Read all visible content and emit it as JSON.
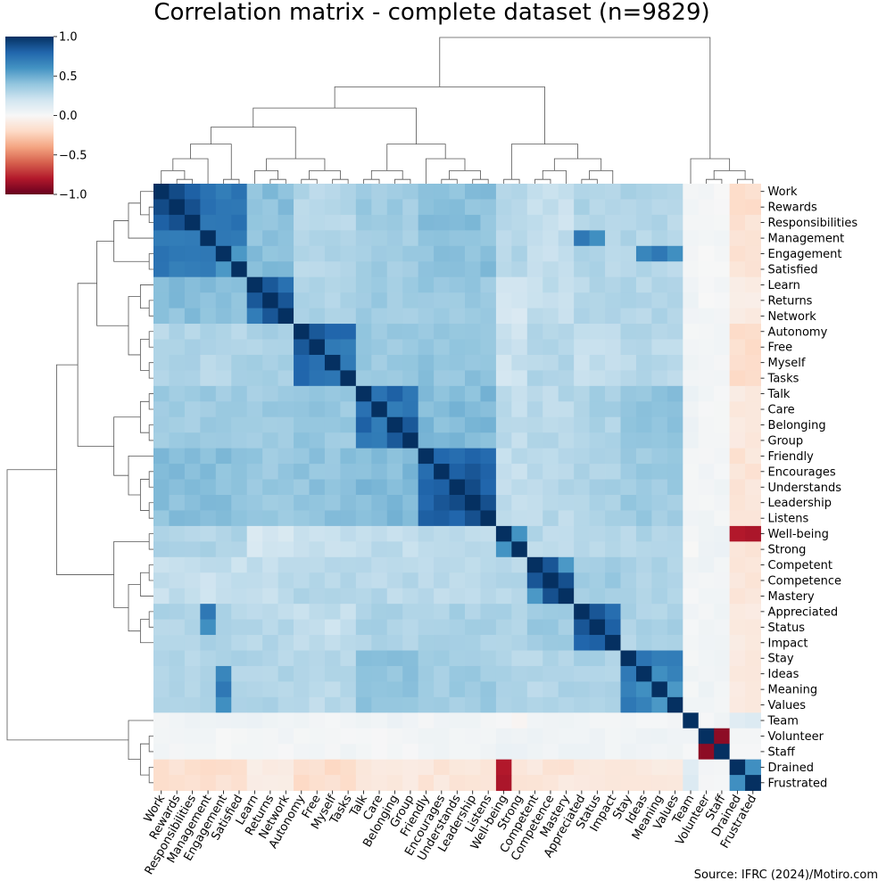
{
  "chart_data": {
    "type": "heatmap",
    "title": "Correlation matrix - complete dataset (n=9829)",
    "source": "Source: IFRC (2024)/Motiro.com",
    "labels": [
      "Work",
      "Rewards",
      "Responsibilities",
      "Management",
      "Engagement",
      "Satisfied",
      "Learn",
      "Returns",
      "Network",
      "Autonomy",
      "Free",
      "Myself",
      "Tasks",
      "Talk",
      "Care",
      "Belonging",
      "Group",
      "Friendly",
      "Encourages",
      "Understands",
      "Leadership",
      "Listens",
      "Well-being",
      "Strong",
      "Competent",
      "Competence",
      "Mastery",
      "Appreciated",
      "Status",
      "Impact",
      "Stay",
      "Ideas",
      "Meaning",
      "Values",
      "Team",
      "Volunteer",
      "Staff",
      "Drained",
      "Frustrated"
    ],
    "colorbar": {
      "min": -1.0,
      "max": 1.0,
      "ticks": [
        "1.0",
        "0.5",
        "0.0",
        "−0.5",
        "−1.0"
      ],
      "tick_values": [
        1.0,
        0.5,
        0.0,
        -0.5,
        -1.0
      ],
      "colormap": "RdBu"
    },
    "clusters": [
      [
        0,
        5
      ],
      [
        6,
        8
      ],
      [
        9,
        12
      ],
      [
        13,
        16
      ],
      [
        17,
        21
      ],
      [
        22,
        23
      ],
      [
        24,
        26
      ],
      [
        27,
        29
      ],
      [
        30,
        33
      ],
      [
        34,
        34
      ],
      [
        35,
        36
      ],
      [
        37,
        38
      ]
    ],
    "cluster_means": [
      [
        0.72,
        0.42,
        0.3,
        0.36,
        0.42,
        0.3,
        0.24,
        0.3,
        0.3,
        0.04,
        0.02,
        -0.16
      ],
      [
        0.42,
        0.72,
        0.32,
        0.36,
        0.38,
        0.18,
        0.25,
        0.28,
        0.3,
        0.05,
        0.02,
        -0.08
      ],
      [
        0.3,
        0.32,
        0.72,
        0.38,
        0.4,
        0.22,
        0.3,
        0.24,
        0.28,
        0.03,
        0.03,
        -0.18
      ],
      [
        0.36,
        0.36,
        0.38,
        0.72,
        0.44,
        0.26,
        0.28,
        0.32,
        0.4,
        0.05,
        0.02,
        -0.1
      ],
      [
        0.42,
        0.38,
        0.4,
        0.44,
        0.8,
        0.25,
        0.28,
        0.32,
        0.36,
        0.03,
        0.03,
        -0.13
      ],
      [
        0.3,
        0.18,
        0.22,
        0.26,
        0.25,
        0.6,
        0.28,
        0.3,
        0.3,
        0.0,
        0.06,
        -0.55
      ],
      [
        0.24,
        0.25,
        0.3,
        0.28,
        0.28,
        0.28,
        0.8,
        0.36,
        0.3,
        0.03,
        0.04,
        -0.12
      ],
      [
        0.3,
        0.28,
        0.24,
        0.32,
        0.32,
        0.3,
        0.36,
        0.8,
        0.32,
        0.03,
        0.04,
        -0.1
      ],
      [
        0.3,
        0.3,
        0.28,
        0.4,
        0.36,
        0.3,
        0.3,
        0.32,
        0.7,
        0.03,
        0.04,
        -0.1
      ],
      [
        0.04,
        0.05,
        0.03,
        0.05,
        0.03,
        0.0,
        0.03,
        0.03,
        0.03,
        1.0,
        0.03,
        0.12
      ],
      [
        0.02,
        0.02,
        0.03,
        0.02,
        0.03,
        0.06,
        0.04,
        0.04,
        0.04,
        0.03,
        0.0,
        0.02
      ],
      [
        -0.16,
        -0.08,
        -0.18,
        -0.1,
        -0.13,
        -0.55,
        -0.12,
        -0.1,
        -0.1,
        0.12,
        0.02,
        0.7
      ]
    ],
    "cell_overrides": [
      {
        "r": 0,
        "c": 1,
        "v": 0.9
      },
      {
        "r": 0,
        "c": 2,
        "v": 0.82
      },
      {
        "r": 1,
        "c": 2,
        "v": 0.88
      },
      {
        "r": 3,
        "c": 4,
        "v": 0.72
      },
      {
        "r": 4,
        "c": 5,
        "v": 0.58
      },
      {
        "r": 6,
        "c": 7,
        "v": 0.85
      },
      {
        "r": 7,
        "c": 8,
        "v": 0.86
      },
      {
        "r": 9,
        "c": 10,
        "v": 0.85
      },
      {
        "r": 9,
        "c": 11,
        "v": 0.8
      },
      {
        "r": 9,
        "c": 12,
        "v": 0.8
      },
      {
        "r": 13,
        "c": 15,
        "v": 0.82
      },
      {
        "r": 14,
        "c": 15,
        "v": 0.7
      },
      {
        "r": 15,
        "c": 16,
        "v": 0.85
      },
      {
        "r": 18,
        "c": 19,
        "v": 0.82
      },
      {
        "r": 18,
        "c": 20,
        "v": 0.86
      },
      {
        "r": 19,
        "c": 20,
        "v": 0.9
      },
      {
        "r": 19,
        "c": 21,
        "v": 0.8
      },
      {
        "r": 20,
        "c": 21,
        "v": 0.88
      },
      {
        "r": 22,
        "c": 23,
        "v": 0.6
      },
      {
        "r": 24,
        "c": 25,
        "v": 0.86
      },
      {
        "r": 25,
        "c": 26,
        "v": 0.88
      },
      {
        "r": 24,
        "c": 26,
        "v": 0.58
      },
      {
        "r": 27,
        "c": 28,
        "v": 0.86
      },
      {
        "r": 28,
        "c": 29,
        "v": 0.82
      },
      {
        "r": 4,
        "c": 31,
        "v": 0.66
      },
      {
        "r": 4,
        "c": 32,
        "v": 0.72
      },
      {
        "r": 4,
        "c": 33,
        "v": 0.62
      },
      {
        "r": 3,
        "c": 27,
        "v": 0.72
      },
      {
        "r": 3,
        "c": 28,
        "v": 0.62
      },
      {
        "r": 31,
        "c": 32,
        "v": 0.62
      },
      {
        "r": 32,
        "c": 33,
        "v": 0.58
      },
      {
        "r": 35,
        "c": 36,
        "v": -0.9
      },
      {
        "r": 37,
        "c": 38,
        "v": 0.62
      },
      {
        "r": 22,
        "c": 37,
        "v": -0.8
      },
      {
        "r": 22,
        "c": 38,
        "v": -0.82
      },
      {
        "r": 23,
        "c": 37,
        "v": -0.12
      },
      {
        "r": 23,
        "c": 38,
        "v": -0.14
      },
      {
        "r": 0,
        "c": 34,
        "v": 0.02
      },
      {
        "r": 34,
        "c": 37,
        "v": 0.12
      },
      {
        "r": 34,
        "c": 38,
        "v": 0.14
      }
    ],
    "row_dendrogram": {
      "root_split": "two main clusters plus outlier group",
      "leaf_count": 39
    },
    "col_dendrogram": {
      "root_split": "two main clusters plus outlier group",
      "leaf_count": 39
    }
  }
}
